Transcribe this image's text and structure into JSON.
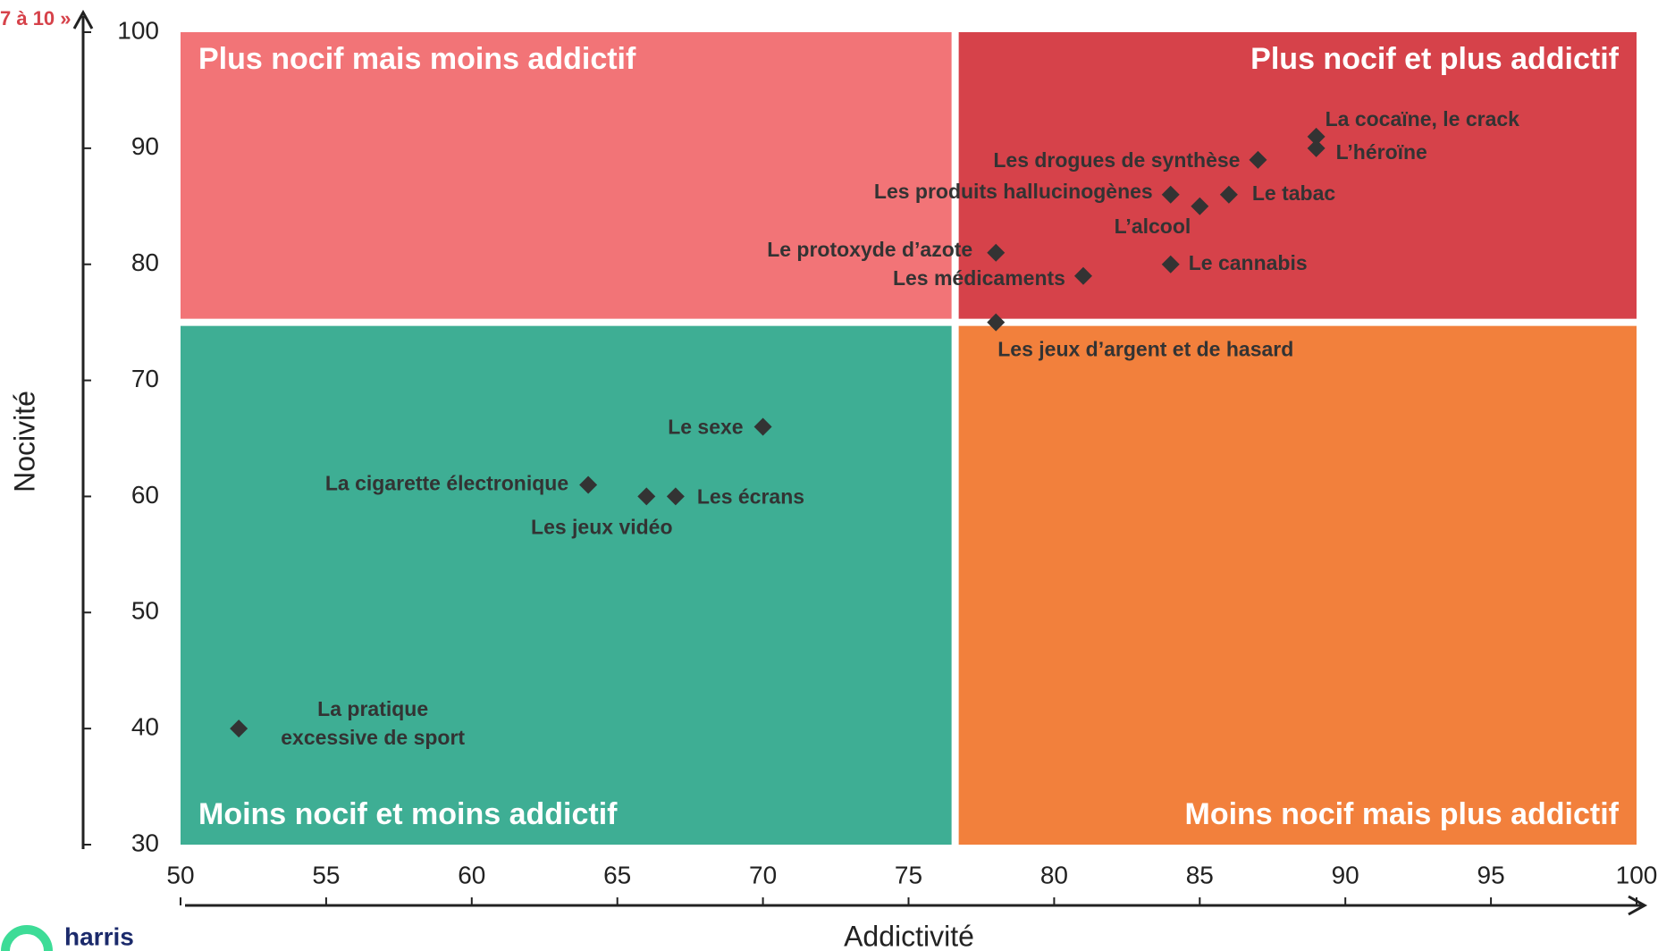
{
  "chart_data": {
    "type": "scatter",
    "annotation": "7 à 10 »",
    "logo": "harris",
    "x_label": "Addictivité",
    "y_label": "Nocivité",
    "xlim": [
      50,
      100
    ],
    "xticks": [
      50,
      55,
      60,
      65,
      70,
      75,
      80,
      85,
      90,
      95,
      100
    ],
    "ylim": [
      30,
      100
    ],
    "yticks": [
      30,
      40,
      50,
      60,
      70,
      80,
      90,
      100
    ],
    "split_x": 76.6,
    "split_y": 75,
    "quadrants": [
      {
        "label": "Plus nocif mais moins addictif",
        "color": "#f27477"
      },
      {
        "label": "Plus nocif et plus addictif",
        "color": "#d6424a"
      },
      {
        "label": "Moins nocif et moins addictif",
        "color": "#3eae94"
      },
      {
        "label": "Moins nocif mais plus addictif",
        "color": "#f2803c"
      }
    ],
    "marker_color": "#333333",
    "points": [
      {
        "name": "La cocaïne, le crack",
        "x": 89,
        "y": 91
      },
      {
        "name": "L’héroïne",
        "x": 89,
        "y": 90
      },
      {
        "name": "Les drogues de synthèse",
        "x": 87,
        "y": 89
      },
      {
        "name": "Les produits hallucinogènes",
        "x": 84,
        "y": 86
      },
      {
        "name": "Le tabac",
        "x": 86,
        "y": 86
      },
      {
        "name": "L’alcool",
        "x": 85,
        "y": 85
      },
      {
        "name": "Le protoxyde d’azote",
        "x": 78,
        "y": 81
      },
      {
        "name": "Le cannabis",
        "x": 84,
        "y": 80
      },
      {
        "name": "Les médicaments",
        "x": 81,
        "y": 79
      },
      {
        "name": "Les jeux d’argent et de hasard",
        "x": 78,
        "y": 75
      },
      {
        "name": "Le sexe",
        "x": 70,
        "y": 66
      },
      {
        "name": "La cigarette électronique",
        "x": 64,
        "y": 61
      },
      {
        "name": "Les jeux vidéo",
        "x": 66,
        "y": 60
      },
      {
        "name": "Les écrans",
        "x": 67,
        "y": 60
      },
      {
        "name": "La pratique\nexcessive de sport",
        "x": 52,
        "y": 40
      }
    ]
  }
}
